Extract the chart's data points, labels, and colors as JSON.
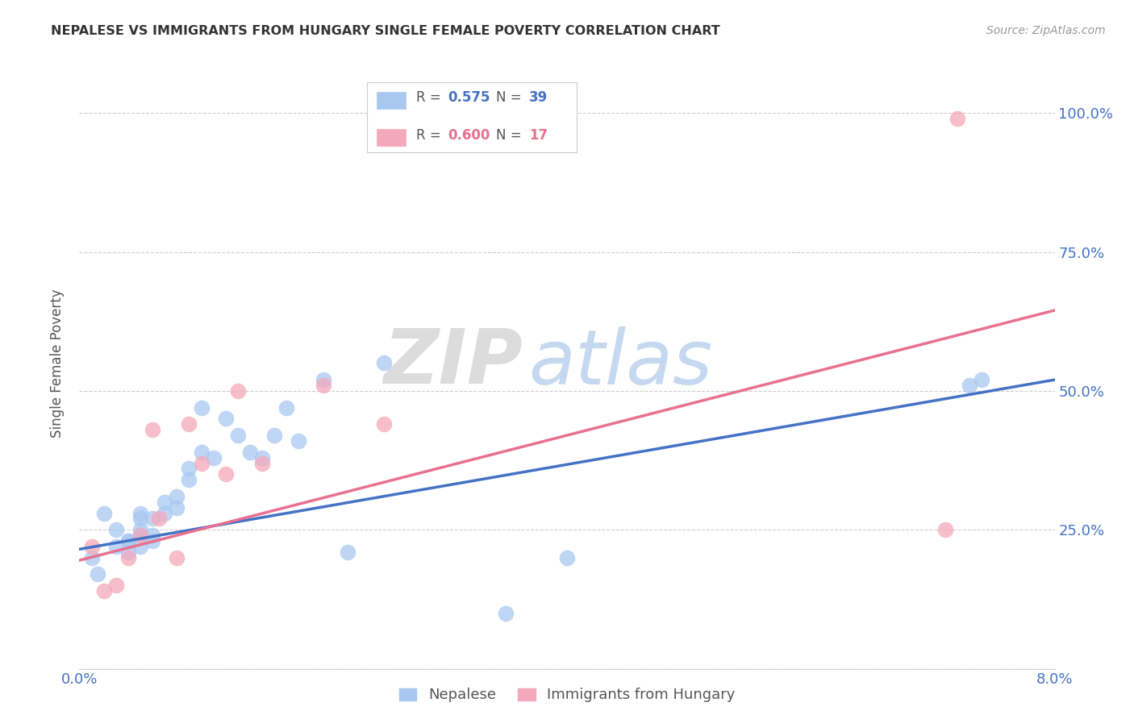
{
  "title": "NEPALESE VS IMMIGRANTS FROM HUNGARY SINGLE FEMALE POVERTY CORRELATION CHART",
  "source": "Source: ZipAtlas.com",
  "ylabel": "Single Female Poverty",
  "watermark_zip": "ZIP",
  "watermark_atlas": "atlas",
  "xlim": [
    0.0,
    0.08
  ],
  "ylim": [
    0.0,
    1.1
  ],
  "x_ticks": [
    0.0,
    0.02,
    0.04,
    0.06,
    0.08
  ],
  "x_tick_labels": [
    "0.0%",
    "",
    "",
    "",
    "8.0%"
  ],
  "y_ticks": [
    0.0,
    0.25,
    0.5,
    0.75,
    1.0
  ],
  "y_tick_labels": [
    "",
    "25.0%",
    "50.0%",
    "75.0%",
    "100.0%"
  ],
  "legend_r1": "R = ",
  "legend_v1": "0.575",
  "legend_n1_label": "N = ",
  "legend_n1_val": "39",
  "legend_r2": "R = ",
  "legend_v2": "0.600",
  "legend_n2_label": "N = ",
  "legend_n2_val": "17",
  "color_blue": "#A8C8F0",
  "color_pink": "#F4A8BC",
  "color_blue_line": "#4472C4",
  "color_pink_line": "#E87090",
  "nepalese_x": [
    0.001,
    0.0015,
    0.002,
    0.003,
    0.003,
    0.004,
    0.004,
    0.004,
    0.005,
    0.005,
    0.005,
    0.005,
    0.005,
    0.006,
    0.006,
    0.006,
    0.007,
    0.007,
    0.008,
    0.008,
    0.009,
    0.009,
    0.01,
    0.01,
    0.011,
    0.012,
    0.013,
    0.014,
    0.015,
    0.016,
    0.017,
    0.018,
    0.02,
    0.022,
    0.025,
    0.035,
    0.04,
    0.073,
    0.074
  ],
  "nepalese_y": [
    0.2,
    0.17,
    0.28,
    0.22,
    0.25,
    0.23,
    0.21,
    0.23,
    0.22,
    0.24,
    0.25,
    0.27,
    0.28,
    0.23,
    0.24,
    0.27,
    0.28,
    0.3,
    0.29,
    0.31,
    0.34,
    0.36,
    0.39,
    0.47,
    0.38,
    0.45,
    0.42,
    0.39,
    0.38,
    0.42,
    0.47,
    0.41,
    0.52,
    0.21,
    0.55,
    0.1,
    0.2,
    0.51,
    0.52
  ],
  "hungary_x": [
    0.001,
    0.002,
    0.003,
    0.004,
    0.005,
    0.006,
    0.0065,
    0.008,
    0.009,
    0.01,
    0.012,
    0.013,
    0.015,
    0.02,
    0.025,
    0.071,
    0.072
  ],
  "hungary_y": [
    0.22,
    0.14,
    0.15,
    0.2,
    0.24,
    0.43,
    0.27,
    0.2,
    0.44,
    0.37,
    0.35,
    0.5,
    0.37,
    0.51,
    0.44,
    0.25,
    0.99
  ],
  "blue_line_x": [
    0.0,
    0.08
  ],
  "blue_line_y": [
    0.215,
    0.52
  ],
  "pink_line_x": [
    0.0,
    0.08
  ],
  "pink_line_y": [
    0.195,
    0.645
  ]
}
